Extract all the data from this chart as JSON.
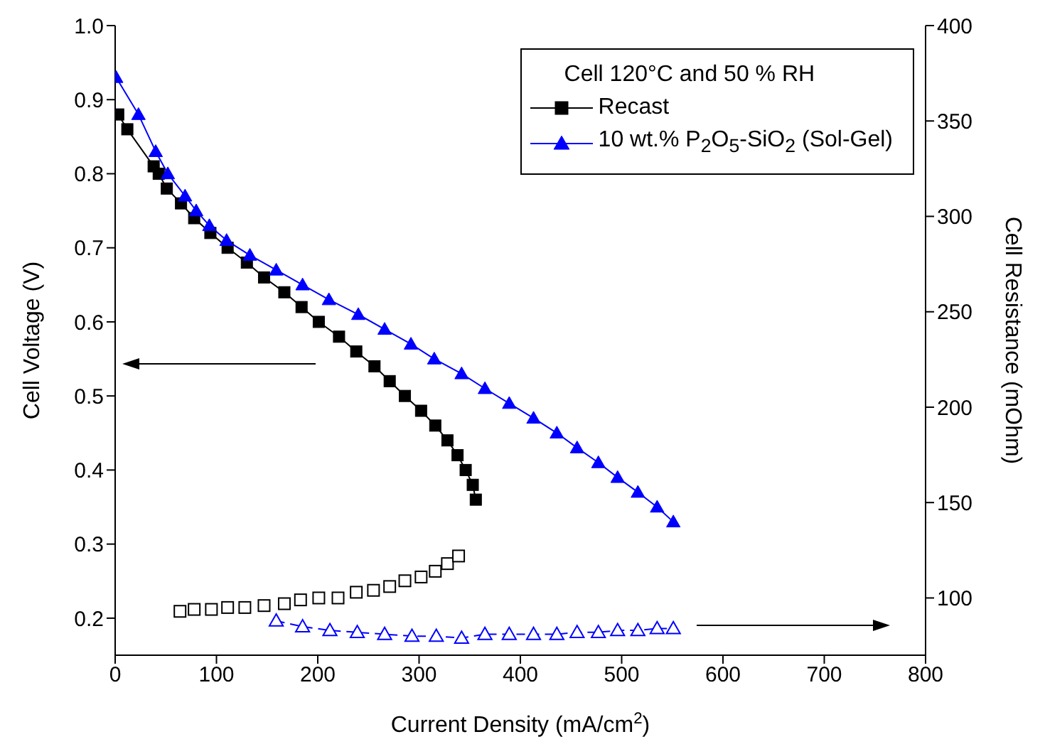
{
  "chart_data": {
    "type": "line",
    "xlabel": "Current Density (mA/cm$^{2}$)",
    "ylabel": "Cell Voltage (V)",
    "y2label": "Cell Resistance (mOhm)",
    "legend_title": "Cell 120°C and 50 % RH",
    "legend": "top right",
    "xlim": [
      0,
      800
    ],
    "xticks": [
      0,
      100,
      200,
      300,
      400,
      500,
      600,
      700,
      800
    ],
    "ylim": [
      0.15,
      1.0
    ],
    "yticks": [
      0.2,
      0.3,
      0.4,
      0.5,
      0.6,
      0.7,
      0.8,
      0.9,
      {
        "value": 1.0,
        "label": "1.0"
      }
    ],
    "y2lim": [
      70,
      400
    ],
    "y2ticks": [
      100,
      150,
      200,
      250,
      300,
      350,
      400
    ],
    "series": [
      {
        "name": "Recast",
        "color": "#000000",
        "marker": "square",
        "line_style": "solid",
        "x": [
          3,
          12,
          38,
          43,
          51,
          65,
          78,
          94,
          111,
          130,
          147,
          167,
          184,
          201,
          221,
          238,
          256,
          271,
          286,
          302,
          316,
          328,
          338,
          346,
          353,
          356
        ],
        "values": [
          0.88,
          0.86,
          0.81,
          0.8,
          0.78,
          0.76,
          0.74,
          0.72,
          0.7,
          0.68,
          0.66,
          0.64,
          0.62,
          0.6,
          0.58,
          0.56,
          0.54,
          0.52,
          0.5,
          0.48,
          0.46,
          0.44,
          0.42,
          0.4,
          0.38,
          0.36
        ]
      },
      {
        "name": "10 wt.% P$_{2}$O$_{5}$-SiO$_{2}$ (Sol-Gel)",
        "color": "#0000ff",
        "marker": "triangle",
        "line_style": "solid",
        "x": [
          1,
          23,
          40,
          52,
          69,
          80,
          93,
          110,
          133,
          159,
          185,
          211,
          240,
          266,
          292,
          315,
          342,
          365,
          389,
          413,
          436,
          456,
          477,
          496,
          516,
          535,
          551
        ],
        "values": [
          0.93,
          0.88,
          0.83,
          0.8,
          0.77,
          0.75,
          0.73,
          0.71,
          0.69,
          0.67,
          0.65,
          0.63,
          0.61,
          0.59,
          0.57,
          0.55,
          0.53,
          0.51,
          0.49,
          0.47,
          0.45,
          0.43,
          0.41,
          0.39,
          0.37,
          0.35,
          0.33
        ]
      },
      {
        "type": "scatter",
        "axis": "y2",
        "color": "#000000",
        "marker": "square",
        "x": [
          64,
          78,
          95,
          111,
          128,
          147,
          167,
          183,
          201,
          220,
          238,
          255,
          271,
          286,
          302,
          316,
          328,
          339
        ],
        "values": [
          93,
          94,
          94,
          95,
          95,
          96,
          97,
          99,
          100,
          100,
          103,
          104,
          106,
          109,
          111,
          114,
          118,
          122
        ]
      },
      {
        "axis": "y2",
        "color": "#0000ff",
        "marker": "triangle",
        "line_style": "dashed",
        "x": [
          159,
          185,
          212,
          239,
          266,
          293,
          317,
          342,
          365,
          389,
          413,
          436,
          456,
          477,
          496,
          516,
          535,
          551
        ],
        "values": [
          88,
          85,
          83,
          82,
          81,
          80,
          80,
          79,
          81,
          81,
          81,
          81,
          82,
          82,
          83,
          83,
          84,
          84
        ]
      }
    ]
  }
}
